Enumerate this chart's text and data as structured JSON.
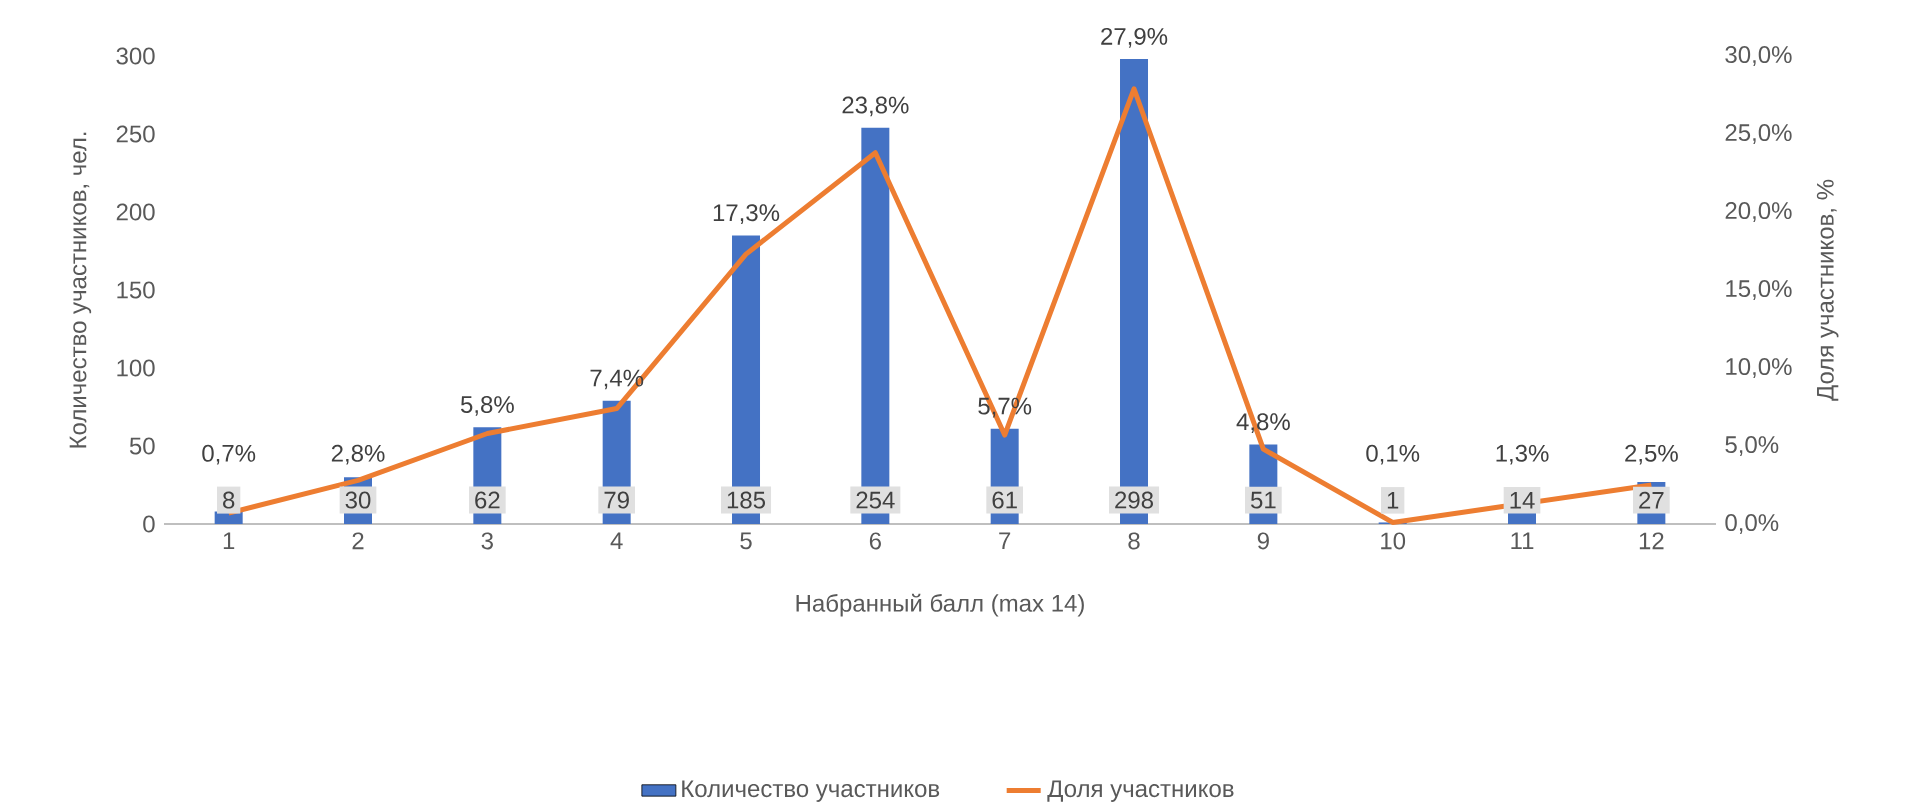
{
  "chart_data": {
    "type": "bar",
    "xlabel": "Набранный балл (max 14)",
    "ylabel": "Количество участников, чел.",
    "y2label": "Доля участников, %",
    "categories": [
      "1",
      "2",
      "3",
      "4",
      "5",
      "6",
      "7",
      "8",
      "9",
      "10",
      "11",
      "12"
    ],
    "series": [
      {
        "name": "Количество участников",
        "color": "#4472c4",
        "values": [
          8,
          30,
          62,
          79,
          185,
          254,
          61,
          298,
          51,
          1,
          14,
          27
        ],
        "value_labels": [
          "8",
          "30",
          "62",
          "79",
          "185",
          "254",
          "61",
          "298",
          "51",
          "1",
          "14",
          "27"
        ]
      },
      {
        "name": "Доля участников",
        "type": "line",
        "axis": "y2",
        "color": "#ed7d31",
        "values": [
          0.7,
          2.8,
          5.8,
          7.4,
          17.3,
          23.8,
          5.7,
          27.9,
          4.8,
          0.1,
          1.3,
          2.5
        ],
        "value_labels": [
          "0,7%",
          "2,8%",
          "5,8%",
          "7,4%",
          "17,3%",
          "23,8%",
          "5,7%",
          "27,9%",
          "4,8%",
          "0,1%",
          "1,3%",
          "2,5%"
        ]
      }
    ],
    "ylim": [
      0,
      300
    ],
    "yticks": [
      0,
      50,
      100,
      150,
      200,
      250,
      300
    ],
    "y2lim": [
      0,
      30
    ],
    "y2ticks": [
      {
        "value": 0,
        "label": "0,0%"
      },
      {
        "value": 5,
        "label": "5,0%"
      },
      {
        "value": 10,
        "label": "10,0%"
      },
      {
        "value": 15,
        "label": "15,0%"
      },
      {
        "value": 20,
        "label": "20,0%"
      },
      {
        "value": 25,
        "label": "25,0%"
      },
      {
        "value": 30,
        "label": "30,0%"
      }
    ],
    "legend": "bottom"
  }
}
